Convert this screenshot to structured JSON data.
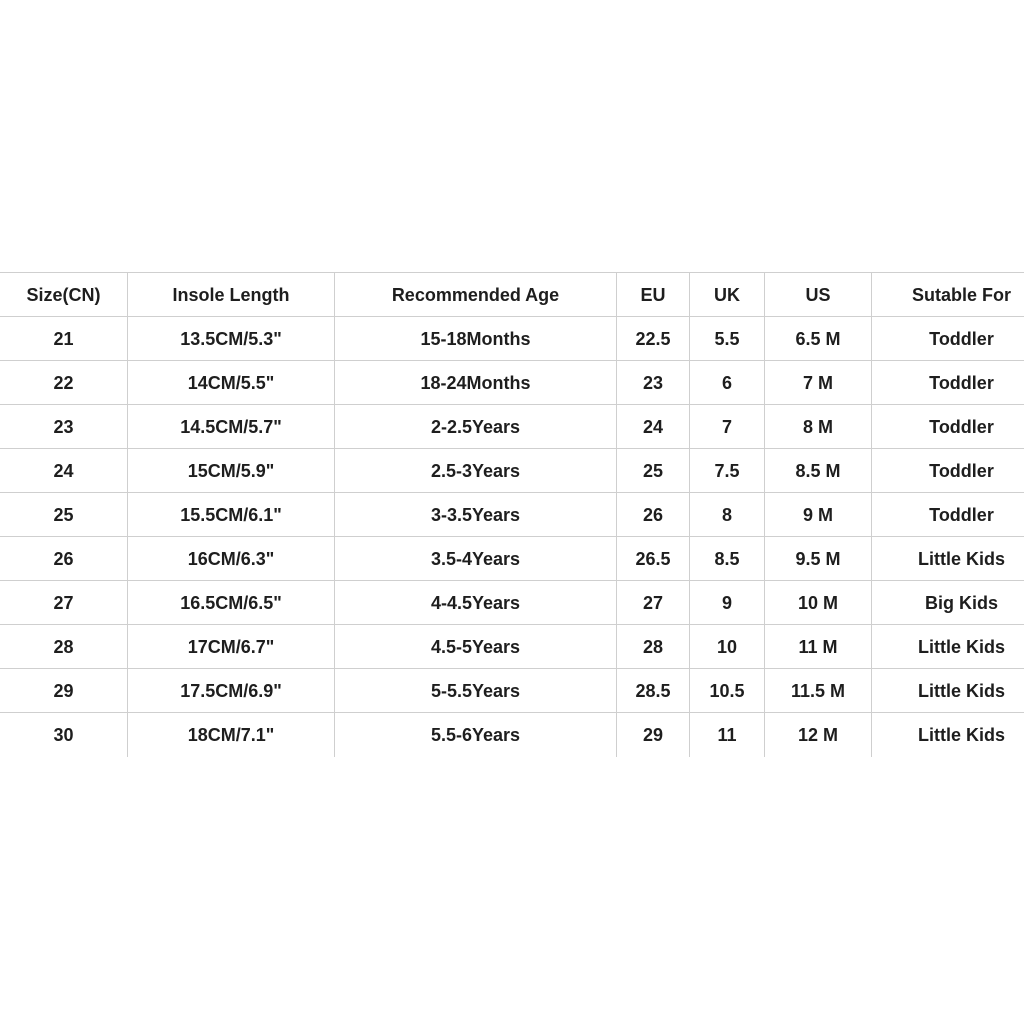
{
  "table": {
    "headers": [
      "Size(CN)",
      "Insole Length",
      "Recommended Age",
      "EU",
      "UK",
      "US",
      "Sutable For"
    ],
    "rows": [
      [
        "21",
        "13.5CM/5.3\"",
        "15-18Months",
        "22.5",
        "5.5",
        "6.5 M",
        "Toddler"
      ],
      [
        "22",
        "14CM/5.5\"",
        "18-24Months",
        "23",
        "6",
        "7 M",
        "Toddler"
      ],
      [
        "23",
        "14.5CM/5.7\"",
        "2-2.5Years",
        "24",
        "7",
        "8 M",
        "Toddler"
      ],
      [
        "24",
        "15CM/5.9\"",
        "2.5-3Years",
        "25",
        "7.5",
        "8.5 M",
        "Toddler"
      ],
      [
        "25",
        "15.5CM/6.1\"",
        "3-3.5Years",
        "26",
        "8",
        "9 M",
        "Toddler"
      ],
      [
        "26",
        "16CM/6.3\"",
        "3.5-4Years",
        "26.5",
        "8.5",
        "9.5 M",
        "Little Kids"
      ],
      [
        "27",
        "16.5CM/6.5\"",
        "4-4.5Years",
        "27",
        "9",
        "10 M",
        "Big Kids"
      ],
      [
        "28",
        "17CM/6.7\"",
        "4.5-5Years",
        "28",
        "10",
        "11 M",
        "Little Kids"
      ],
      [
        "29",
        "17.5CM/6.9\"",
        "5-5.5Years",
        "28.5",
        "10.5",
        "11.5 M",
        "Little Kids"
      ],
      [
        "30",
        "18CM/7.1\"",
        "5.5-6Years",
        "29",
        "11",
        "12 M",
        "Little Kids"
      ]
    ]
  }
}
